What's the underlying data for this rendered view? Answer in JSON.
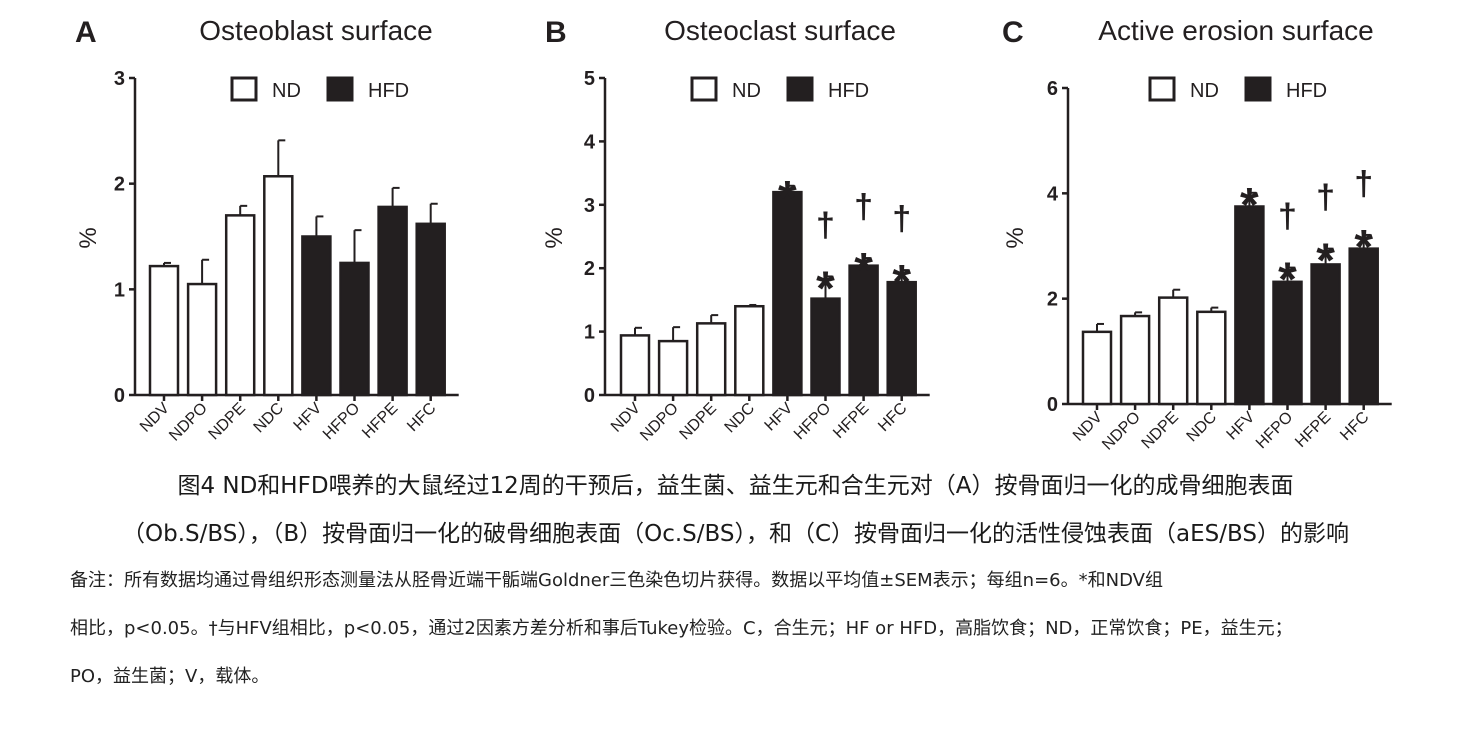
{
  "colors": {
    "nd_fill": "#ffffff",
    "hfd_fill": "#231f20",
    "stroke": "#231f20"
  },
  "legend": {
    "nd": "ND",
    "hfd": "HFD"
  },
  "chart_data": [
    {
      "type": "bar",
      "panel": "A",
      "title": "Osteoblast surface",
      "ylabel": "%",
      "ylim": [
        0,
        3
      ],
      "yticks": [
        "0",
        "1",
        "2",
        "3"
      ],
      "categories": [
        "NDV",
        "NDPO",
        "NDPE",
        "NDC",
        "HFV",
        "HFPO",
        "HFPE",
        "HFC"
      ],
      "series": [
        {
          "name": "ND",
          "values": [
            1.22,
            1.05,
            1.7,
            2.07,
            null,
            null,
            null,
            null
          ],
          "errors": [
            0.03,
            0.23,
            0.09,
            0.34,
            null,
            null,
            null,
            null
          ]
        },
        {
          "name": "HFD",
          "values": [
            null,
            null,
            null,
            null,
            1.5,
            1.25,
            1.78,
            1.62
          ],
          "errors": [
            null,
            null,
            null,
            null,
            0.19,
            0.31,
            0.18,
            0.19
          ]
        }
      ],
      "annotations": [
        "",
        "",
        "",
        "",
        "",
        "",
        "",
        ""
      ]
    },
    {
      "type": "bar",
      "panel": "B",
      "title": "Osteoclast surface",
      "ylabel": "%",
      "ylim": [
        0,
        5
      ],
      "yticks": [
        "0",
        "1",
        "2",
        "3",
        "4",
        "5"
      ],
      "categories": [
        "NDV",
        "NDPO",
        "NDPE",
        "NDC",
        "HFV",
        "HFPO",
        "HFPE",
        "HFC"
      ],
      "series": [
        {
          "name": "ND",
          "values": [
            0.94,
            0.85,
            1.13,
            1.4,
            null,
            null,
            null,
            null
          ],
          "errors": [
            0.12,
            0.22,
            0.13,
            0.02,
            null,
            null,
            null,
            null
          ]
        },
        {
          "name": "HFD",
          "values": [
            null,
            null,
            null,
            null,
            3.2,
            1.52,
            2.04,
            1.78
          ],
          "errors": [
            null,
            null,
            null,
            null,
            0.1,
            0.35,
            0.12,
            0.19
          ]
        }
      ],
      "annotations": [
        "",
        "",
        "",
        "",
        "*",
        "†*",
        "†*",
        "†*"
      ]
    },
    {
      "type": "bar",
      "panel": "C",
      "title": "Active erosion surface",
      "ylabel": "%",
      "ylim": [
        0,
        6
      ],
      "yticks": [
        "0",
        "2",
        "4",
        "6"
      ],
      "categories": [
        "NDV",
        "NDPO",
        "NDPE",
        "NDC",
        "HFV",
        "HFPO",
        "HFPE",
        "HFC"
      ],
      "series": [
        {
          "name": "ND",
          "values": [
            1.37,
            1.67,
            2.02,
            1.75,
            null,
            null,
            null,
            null
          ],
          "errors": [
            0.15,
            0.07,
            0.15,
            0.08,
            null,
            null,
            null,
            null
          ]
        },
        {
          "name": "HFD",
          "values": [
            null,
            null,
            null,
            null,
            3.75,
            2.32,
            2.65,
            2.95
          ],
          "errors": [
            null,
            null,
            null,
            null,
            0.26,
            0.27,
            0.3,
            0.26
          ]
        }
      ],
      "annotations": [
        "",
        "",
        "",
        "",
        "*",
        "†*",
        "†*",
        "†*"
      ]
    }
  ],
  "caption": {
    "line1": "图4 ND和HFD喂养的大鼠经过12周的干预后，益生菌、益生元和合生元对（A）按骨面归一化的成骨细胞表面",
    "line2": "（Ob.S/BS），（B）按骨面归一化的破骨细胞表面（Oc.S/BS），和（C）按骨面归一化的活性侵蚀表面（aES/BS）的影响"
  },
  "notes": {
    "line1": "备注：所有数据均通过骨组织形态测量法从胫骨近端干骺端Goldner三色染色切片获得。数据以平均值±SEM表示；每组n=6。*和NDV组",
    "line2": "相比，p<0.05。†与HFV组相比，p<0.05，通过2因素方差分析和事后Tukey检验。C，合生元；HF or HFD，高脂饮食；ND，正常饮食；PE，益生元；",
    "line3": "PO，益生菌；V，载体。"
  }
}
